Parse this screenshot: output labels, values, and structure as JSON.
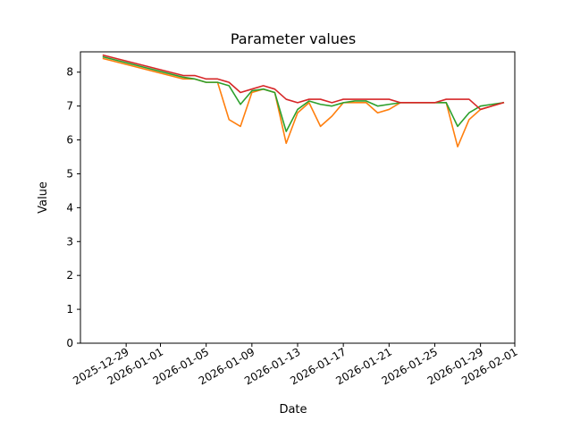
{
  "chart_data": {
    "type": "line",
    "title": "Parameter values",
    "xlabel": "Date",
    "ylabel": "Value",
    "x_axis": "date",
    "xlim": [
      "2025-12-25",
      "2026-02-01"
    ],
    "ylim": [
      0,
      8.6
    ],
    "xticks": [
      "2025-12-29",
      "2026-01-01",
      "2026-01-05",
      "2026-01-09",
      "2026-01-13",
      "2026-01-17",
      "2026-01-21",
      "2026-01-25",
      "2026-01-29",
      "2026-02-01"
    ],
    "yticks": [
      0,
      1,
      2,
      3,
      4,
      5,
      6,
      7,
      8
    ],
    "grid": false,
    "legend": false,
    "x": [
      "2025-12-27",
      "2026-01-03",
      "2026-01-04",
      "2026-01-05",
      "2026-01-06",
      "2026-01-07",
      "2026-01-08",
      "2026-01-09",
      "2026-01-10",
      "2026-01-11",
      "2026-01-12",
      "2026-01-13",
      "2026-01-14",
      "2026-01-15",
      "2026-01-16",
      "2026-01-17",
      "2026-01-18",
      "2026-01-19",
      "2026-01-20",
      "2026-01-21",
      "2026-01-22",
      "2026-01-23",
      "2026-01-24",
      "2026-01-25",
      "2026-01-26",
      "2026-01-27",
      "2026-01-28",
      "2026-01-29",
      "2026-01-30",
      "2026-01-31"
    ],
    "series": [
      {
        "color": "#ff7f0e",
        "values": [
          8.4,
          7.8,
          7.8,
          7.7,
          7.7,
          6.6,
          6.4,
          7.4,
          7.5,
          7.4,
          5.9,
          6.8,
          7.1,
          6.4,
          6.7,
          7.1,
          7.1,
          7.1,
          6.8,
          6.9,
          7.1,
          7.1,
          7.1,
          7.1,
          7.1,
          5.8,
          6.6,
          6.9,
          7.0,
          7.1
        ]
      },
      {
        "color": "#2ca02c",
        "values": [
          8.45,
          7.85,
          7.8,
          7.7,
          7.7,
          7.6,
          7.05,
          7.45,
          7.5,
          7.4,
          6.25,
          6.9,
          7.15,
          7.05,
          7.0,
          7.1,
          7.15,
          7.15,
          7.0,
          7.05,
          7.1,
          7.1,
          7.1,
          7.1,
          7.1,
          6.4,
          6.8,
          7.0,
          7.05,
          7.1
        ]
      },
      {
        "color": "#d62728",
        "values": [
          8.5,
          7.9,
          7.9,
          7.8,
          7.8,
          7.7,
          7.4,
          7.5,
          7.6,
          7.5,
          7.2,
          7.1,
          7.2,
          7.2,
          7.1,
          7.2,
          7.2,
          7.2,
          7.2,
          7.2,
          7.1,
          7.1,
          7.1,
          7.1,
          7.2,
          7.2,
          7.2,
          6.9,
          7.0,
          7.1
        ]
      }
    ]
  }
}
